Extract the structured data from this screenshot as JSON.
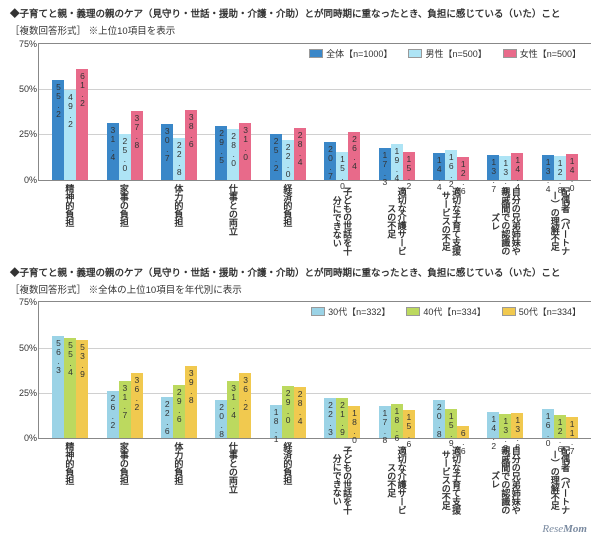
{
  "chart1": {
    "title_prefix": "◆",
    "title_main": "子育てと親・義理の親のケア（見守り・世話・援助・介護・介助）とが同時期に重なったとき、負担に感じている（いた）こと",
    "title_sub": "［複数回答形式］ ※上位10項目を表示",
    "ylim": 75,
    "yticks": [
      0,
      25,
      50,
      75
    ],
    "legend": [
      {
        "label": "全体【n=1000】",
        "color": "#3a87c8"
      },
      {
        "label": "男性【n=500】",
        "color": "#aee4f5"
      },
      {
        "label": "女性【n=500】",
        "color": "#e86a8a"
      }
    ],
    "categories": [
      {
        "label": "精神的\n負担",
        "v": [
          55.2,
          49.2,
          61.2
        ]
      },
      {
        "label": "家事の\n負担",
        "v": [
          31.4,
          25.0,
          37.8
        ]
      },
      {
        "label": "体力的\n負担",
        "v": [
          30.7,
          22.8,
          38.6
        ]
      },
      {
        "label": "仕事との\n両立",
        "v": [
          29.5,
          28.0,
          31.0
        ]
      },
      {
        "label": "経済的\n負担",
        "v": [
          25.2,
          22.0,
          28.4
        ]
      },
      {
        "label": "子どもの\n世話を\n十分に\nできない",
        "v": [
          20.7,
          15.0,
          26.4
        ]
      },
      {
        "label": "適切な\n介護\nサービスの\n不足",
        "v": [
          17.3,
          19.4,
          15.2
        ]
      },
      {
        "label": "適切な\n子育て\n支援\nサービス\nの不足",
        "v": [
          14.4,
          16.2,
          12.6
        ]
      },
      {
        "label": "自分の\n兄弟姉妹\nや親戚間\nでの認識\nのズレ",
        "v": [
          13.7,
          13.0,
          14.4
        ]
      },
      {
        "label": "配偶者\n（パートナー）の\n理解不足",
        "v": [
          13.4,
          12.8,
          14.0
        ]
      }
    ]
  },
  "chart2": {
    "title_prefix": "◆",
    "title_main": "子育てと親・義理の親のケア（見守り・世話・援助・介護・介助）とが同時期に重なったとき、負担に感じている（いた）こと",
    "title_sub": "［複数回答形式］ ※全体の上位10項目を年代別に表示",
    "ylim": 75,
    "yticks": [
      0,
      25,
      50,
      75
    ],
    "legend": [
      {
        "label": "30代【n=332】",
        "color": "#9bd3e6"
      },
      {
        "label": "40代【n=334】",
        "color": "#bcd95f"
      },
      {
        "label": "50代【n=334】",
        "color": "#f1c94f"
      }
    ],
    "categories": [
      {
        "label": "精神的\n負担",
        "v": [
          56.3,
          55.4,
          53.9
        ]
      },
      {
        "label": "家事の\n負担",
        "v": [
          26.2,
          31.7,
          36.2
        ]
      },
      {
        "label": "体力的\n負担",
        "v": [
          22.6,
          29.6,
          39.8
        ]
      },
      {
        "label": "仕事との\n両立",
        "v": [
          20.8,
          31.4,
          36.2
        ]
      },
      {
        "label": "経済的\n負担",
        "v": [
          18.1,
          29.0,
          28.4
        ]
      },
      {
        "label": "子どもの\n世話を\n十分に\nできない",
        "v": [
          22.3,
          21.9,
          18.0
        ]
      },
      {
        "label": "適切な\n介護\nサービスの\n不足",
        "v": [
          17.8,
          18.6,
          15.6
        ]
      },
      {
        "label": "適切な\n子育て\n支援\nサービス\nの不足",
        "v": [
          20.8,
          15.9,
          6.6
        ]
      },
      {
        "label": "自分の\n兄弟姉妹\nや親戚間\nでの認識\nのズレ",
        "v": [
          14.2,
          13.2,
          13.8
        ]
      },
      {
        "label": "配偶者\n（パートナー）の\n理解不足",
        "v": [
          16.0,
          12.6,
          11.7
        ]
      }
    ]
  },
  "footer": "ReseMom"
}
